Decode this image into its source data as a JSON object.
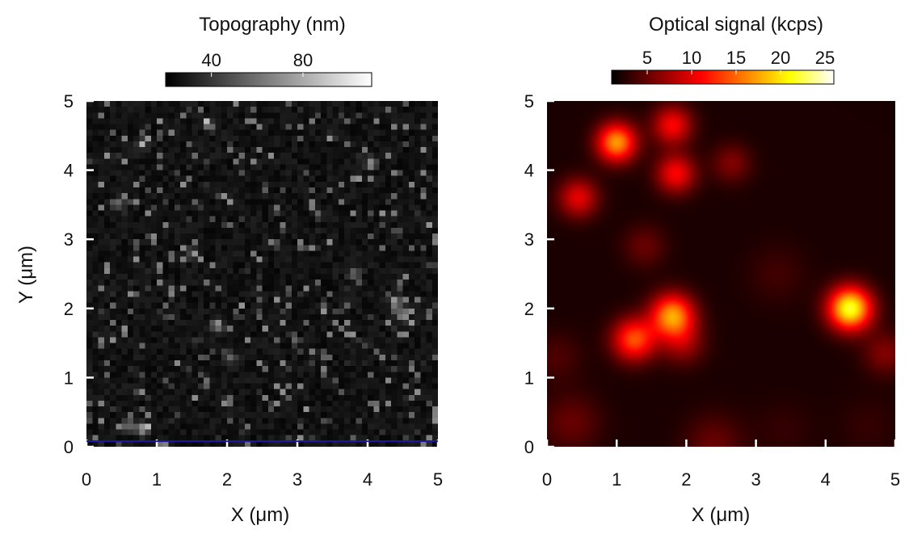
{
  "chart_data": [
    {
      "type": "heatmap",
      "title": "",
      "xlabel": "X (μm)",
      "ylabel": "Y (μm)",
      "xlim": [
        0,
        5
      ],
      "ylim": [
        0,
        5
      ],
      "x_ticks": [
        0,
        1,
        2,
        3,
        4,
        5
      ],
      "y_ticks": [
        0,
        1,
        2,
        3,
        4,
        5
      ],
      "colormap": "grayscale",
      "colorbar": {
        "title": "Topography  (nm)",
        "ticks": [
          40,
          80
        ],
        "range": [
          20,
          110
        ]
      },
      "grid_resolution": 60,
      "background_value": 22,
      "features": [
        {
          "x": 0.6,
          "y": 0.3,
          "value": 75
        },
        {
          "x": 0.8,
          "y": 0.25,
          "value": 80
        },
        {
          "x": 1.85,
          "y": 1.75,
          "value": 70
        },
        {
          "x": 4.5,
          "y": 1.9,
          "value": 78
        },
        {
          "x": 4.4,
          "y": 2.1,
          "value": 72
        },
        {
          "x": 4.05,
          "y": 4.1,
          "value": 72
        },
        {
          "x": 0.45,
          "y": 3.5,
          "value": 60
        },
        {
          "x": 0.8,
          "y": 4.4,
          "value": 55
        },
        {
          "x": 1.75,
          "y": 4.65,
          "value": 60
        },
        {
          "x": 1.5,
          "y": 2.8,
          "value": 55
        },
        {
          "x": 2.05,
          "y": 1.3,
          "value": 55
        },
        {
          "x": 3.8,
          "y": 2.5,
          "value": 55
        }
      ],
      "baseline_marker": {
        "y": 0.08,
        "color": "#1a1aa0"
      }
    },
    {
      "type": "heatmap",
      "title": "",
      "xlabel": "X (μm)",
      "ylabel": "",
      "xlim": [
        0,
        5
      ],
      "ylim": [
        0,
        5
      ],
      "x_ticks": [
        0,
        1,
        2,
        3,
        4,
        5
      ],
      "y_ticks": [
        0,
        1,
        2,
        3,
        4,
        5
      ],
      "colormap": "hot",
      "colorbar": {
        "title": "Optical signal  (kcps)",
        "ticks": [
          5,
          10,
          15,
          20,
          25
        ],
        "range": [
          1,
          26
        ]
      },
      "background_value": 2,
      "spots": [
        {
          "x": 4.35,
          "y": 2.0,
          "value": 22,
          "sigma": 0.22
        },
        {
          "x": 1.0,
          "y": 4.4,
          "value": 17,
          "sigma": 0.2
        },
        {
          "x": 1.8,
          "y": 1.9,
          "value": 17,
          "sigma": 0.22
        },
        {
          "x": 1.25,
          "y": 1.55,
          "value": 14,
          "sigma": 0.22
        },
        {
          "x": 1.8,
          "y": 4.65,
          "value": 11,
          "sigma": 0.2
        },
        {
          "x": 1.85,
          "y": 3.95,
          "value": 11,
          "sigma": 0.2
        },
        {
          "x": 0.45,
          "y": 3.6,
          "value": 10,
          "sigma": 0.2
        },
        {
          "x": 1.95,
          "y": 1.5,
          "value": 7,
          "sigma": 0.22
        },
        {
          "x": 2.65,
          "y": 4.1,
          "value": 6,
          "sigma": 0.2
        },
        {
          "x": 1.4,
          "y": 2.9,
          "value": 5,
          "sigma": 0.22
        },
        {
          "x": 4.85,
          "y": 1.35,
          "value": 6,
          "sigma": 0.22
        },
        {
          "x": 0.35,
          "y": 0.35,
          "value": 5,
          "sigma": 0.3
        },
        {
          "x": 2.4,
          "y": 0.05,
          "value": 5,
          "sigma": 0.3
        },
        {
          "x": 0.15,
          "y": 1.3,
          "value": 4,
          "sigma": 0.25
        },
        {
          "x": 3.3,
          "y": 2.5,
          "value": 3.5,
          "sigma": 0.3
        },
        {
          "x": 3.4,
          "y": 0.25,
          "value": 3,
          "sigma": 0.3
        },
        {
          "x": 4.6,
          "y": 0.3,
          "value": 3,
          "sigma": 0.3
        }
      ]
    }
  ]
}
